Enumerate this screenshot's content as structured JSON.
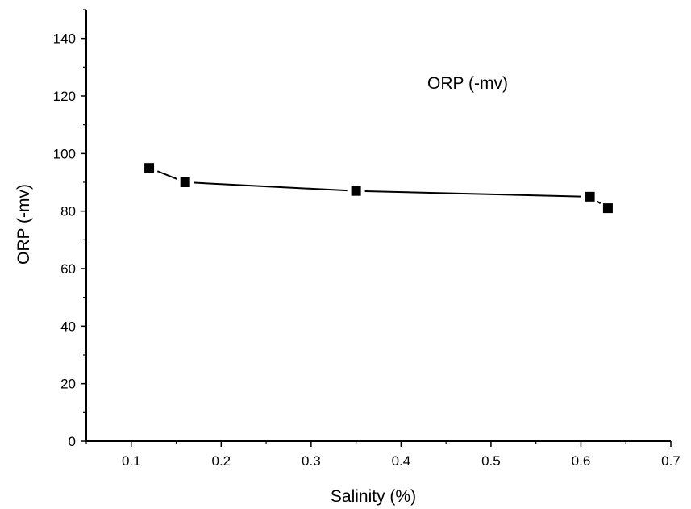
{
  "chart_data": {
    "type": "line",
    "title": "",
    "xlabel": "Salinity (%)",
    "ylabel": "ORP (-mv)",
    "xlim": [
      0.05,
      0.7
    ],
    "ylim": [
      0,
      150
    ],
    "x_ticks": [
      0.1,
      0.2,
      0.3,
      0.4,
      0.5,
      0.6,
      0.7
    ],
    "y_ticks": [
      0,
      20,
      40,
      60,
      80,
      100,
      120,
      140
    ],
    "grid": false,
    "legend": "top-right",
    "series": [
      {
        "name": "ORP (-mv)",
        "marker": "square",
        "color": "#000000",
        "x": [
          0.12,
          0.16,
          0.35,
          0.61,
          0.63
        ],
        "y": [
          95,
          90,
          87,
          85,
          81
        ]
      }
    ]
  }
}
